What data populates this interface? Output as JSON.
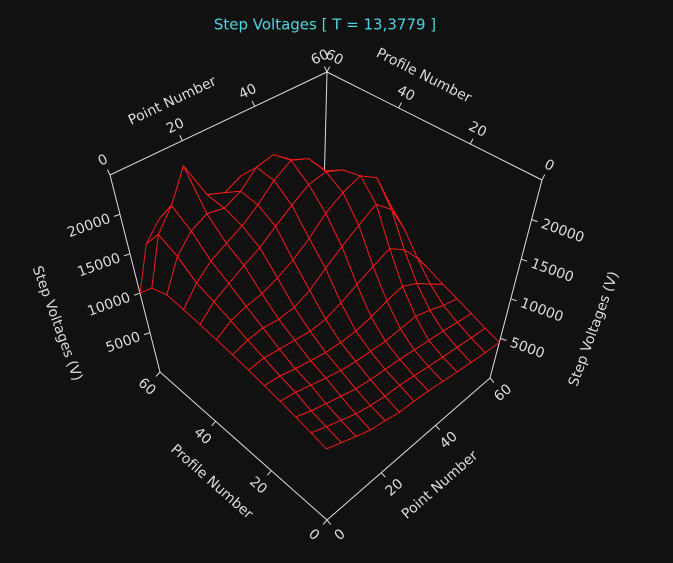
{
  "chart_data": {
    "type": "surface",
    "title": "Step Voltages [ T = 13,3779 ]",
    "x_label": "Point Number",
    "y_label": "Profile Number",
    "z_label": "Step Voltages (V)",
    "x": [
      0,
      5,
      10,
      15,
      20,
      25,
      30,
      35,
      40,
      45,
      50,
      55,
      60
    ],
    "y": [
      0,
      5,
      10,
      15,
      20,
      25,
      30,
      35,
      40,
      45,
      50,
      55,
      60
    ],
    "z": [
      [
        7500,
        7000,
        6500,
        6000,
        5800,
        5500,
        5500,
        5400,
        5200,
        5000,
        4800,
        4600,
        4500
      ],
      [
        8000,
        7500,
        7000,
        6500,
        6200,
        6000,
        6000,
        5800,
        5600,
        5400,
        5200,
        5000,
        4800
      ],
      [
        8500,
        8000,
        7600,
        7200,
        6800,
        6600,
        6500,
        6400,
        6200,
        6000,
        5800,
        5500,
        5200
      ],
      [
        9000,
        8800,
        8400,
        8000,
        7600,
        7400,
        7300,
        7200,
        7400,
        7600,
        7000,
        6200,
        5600
      ],
      [
        9500,
        9400,
        9000,
        8700,
        8400,
        8300,
        8400,
        8800,
        9500,
        10000,
        9000,
        7500,
        6000
      ],
      [
        10000,
        10200,
        10000,
        9800,
        9600,
        9800,
        10500,
        11500,
        12500,
        13500,
        12000,
        9500,
        6500
      ],
      [
        10500,
        11000,
        11200,
        11000,
        11200,
        12000,
        13500,
        15000,
        16500,
        18000,
        16000,
        12000,
        7000
      ],
      [
        11000,
        12000,
        12500,
        12800,
        13500,
        14500,
        16000,
        18000,
        19500,
        20500,
        19000,
        14000,
        7500
      ],
      [
        11500,
        13000,
        14000,
        15000,
        16000,
        17500,
        19000,
        20500,
        21000,
        20000,
        17000,
        12500,
        7500
      ],
      [
        12000,
        14000,
        15500,
        16500,
        17500,
        19000,
        21000,
        22500,
        21500,
        18500,
        15000,
        11000,
        7000
      ],
      [
        12500,
        16000,
        18000,
        19000,
        18500,
        19500,
        21500,
        22000,
        20000,
        17000,
        13500,
        10000,
        6500
      ],
      [
        12000,
        17500,
        20000,
        24000,
        19000,
        18000,
        19000,
        18500,
        17000,
        14500,
        12000,
        9000,
        6000
      ],
      [
        10000,
        15000,
        17000,
        18000,
        16000,
        15000,
        15500,
        15000,
        14000,
        12000,
        10000,
        8000,
        5500
      ]
    ],
    "xlim": [
      0,
      60
    ],
    "ylim": [
      0,
      60
    ],
    "zlim": [
      0,
      25000
    ],
    "xticks": [
      0,
      20,
      40,
      60
    ],
    "yticks": [
      0,
      20,
      40,
      60
    ],
    "zticks": [
      5000,
      10000,
      15000,
      20000
    ],
    "color": "#ff1a1a"
  }
}
